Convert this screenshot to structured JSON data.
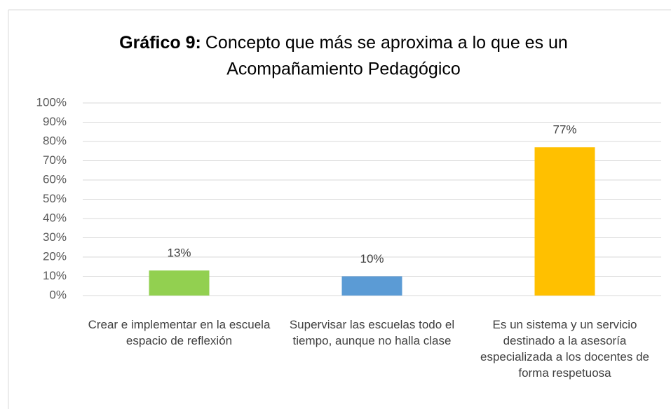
{
  "chart_data": {
    "type": "bar",
    "title_prefix": "Gráfico 9:",
    "title_lines": [
      "Concepto que más se aproxima a lo que es un",
      "Acompañamiento Pedagógico"
    ],
    "categories": [
      "Crear e implementar en la escuela espacio de reflexión",
      "Supervisar las escuelas todo el tiempo, aunque no halla clase",
      "Es un sistema y un servicio destinado a la asesoría especializada a los docentes de forma respetuosa"
    ],
    "values": [
      13,
      10,
      77
    ],
    "value_labels": [
      "13%",
      "10%",
      "77%"
    ],
    "colors": [
      "#92d050",
      "#5b9bd5",
      "#ffc000"
    ],
    "ylim": [
      0,
      100
    ],
    "yticks": [
      {
        "value": 0,
        "label": "0%"
      },
      {
        "value": 10,
        "label": "10%"
      },
      {
        "value": 20,
        "label": "20%"
      },
      {
        "value": 30,
        "label": "30%"
      },
      {
        "value": 40,
        "label": "40%"
      },
      {
        "value": 50,
        "label": "50%"
      },
      {
        "value": 60,
        "label": "60%"
      },
      {
        "value": 70,
        "label": "70%"
      },
      {
        "value": 80,
        "label": "80%"
      },
      {
        "value": 90,
        "label": "90%"
      },
      {
        "value": 100,
        "label": "100%"
      }
    ],
    "grid": true
  }
}
